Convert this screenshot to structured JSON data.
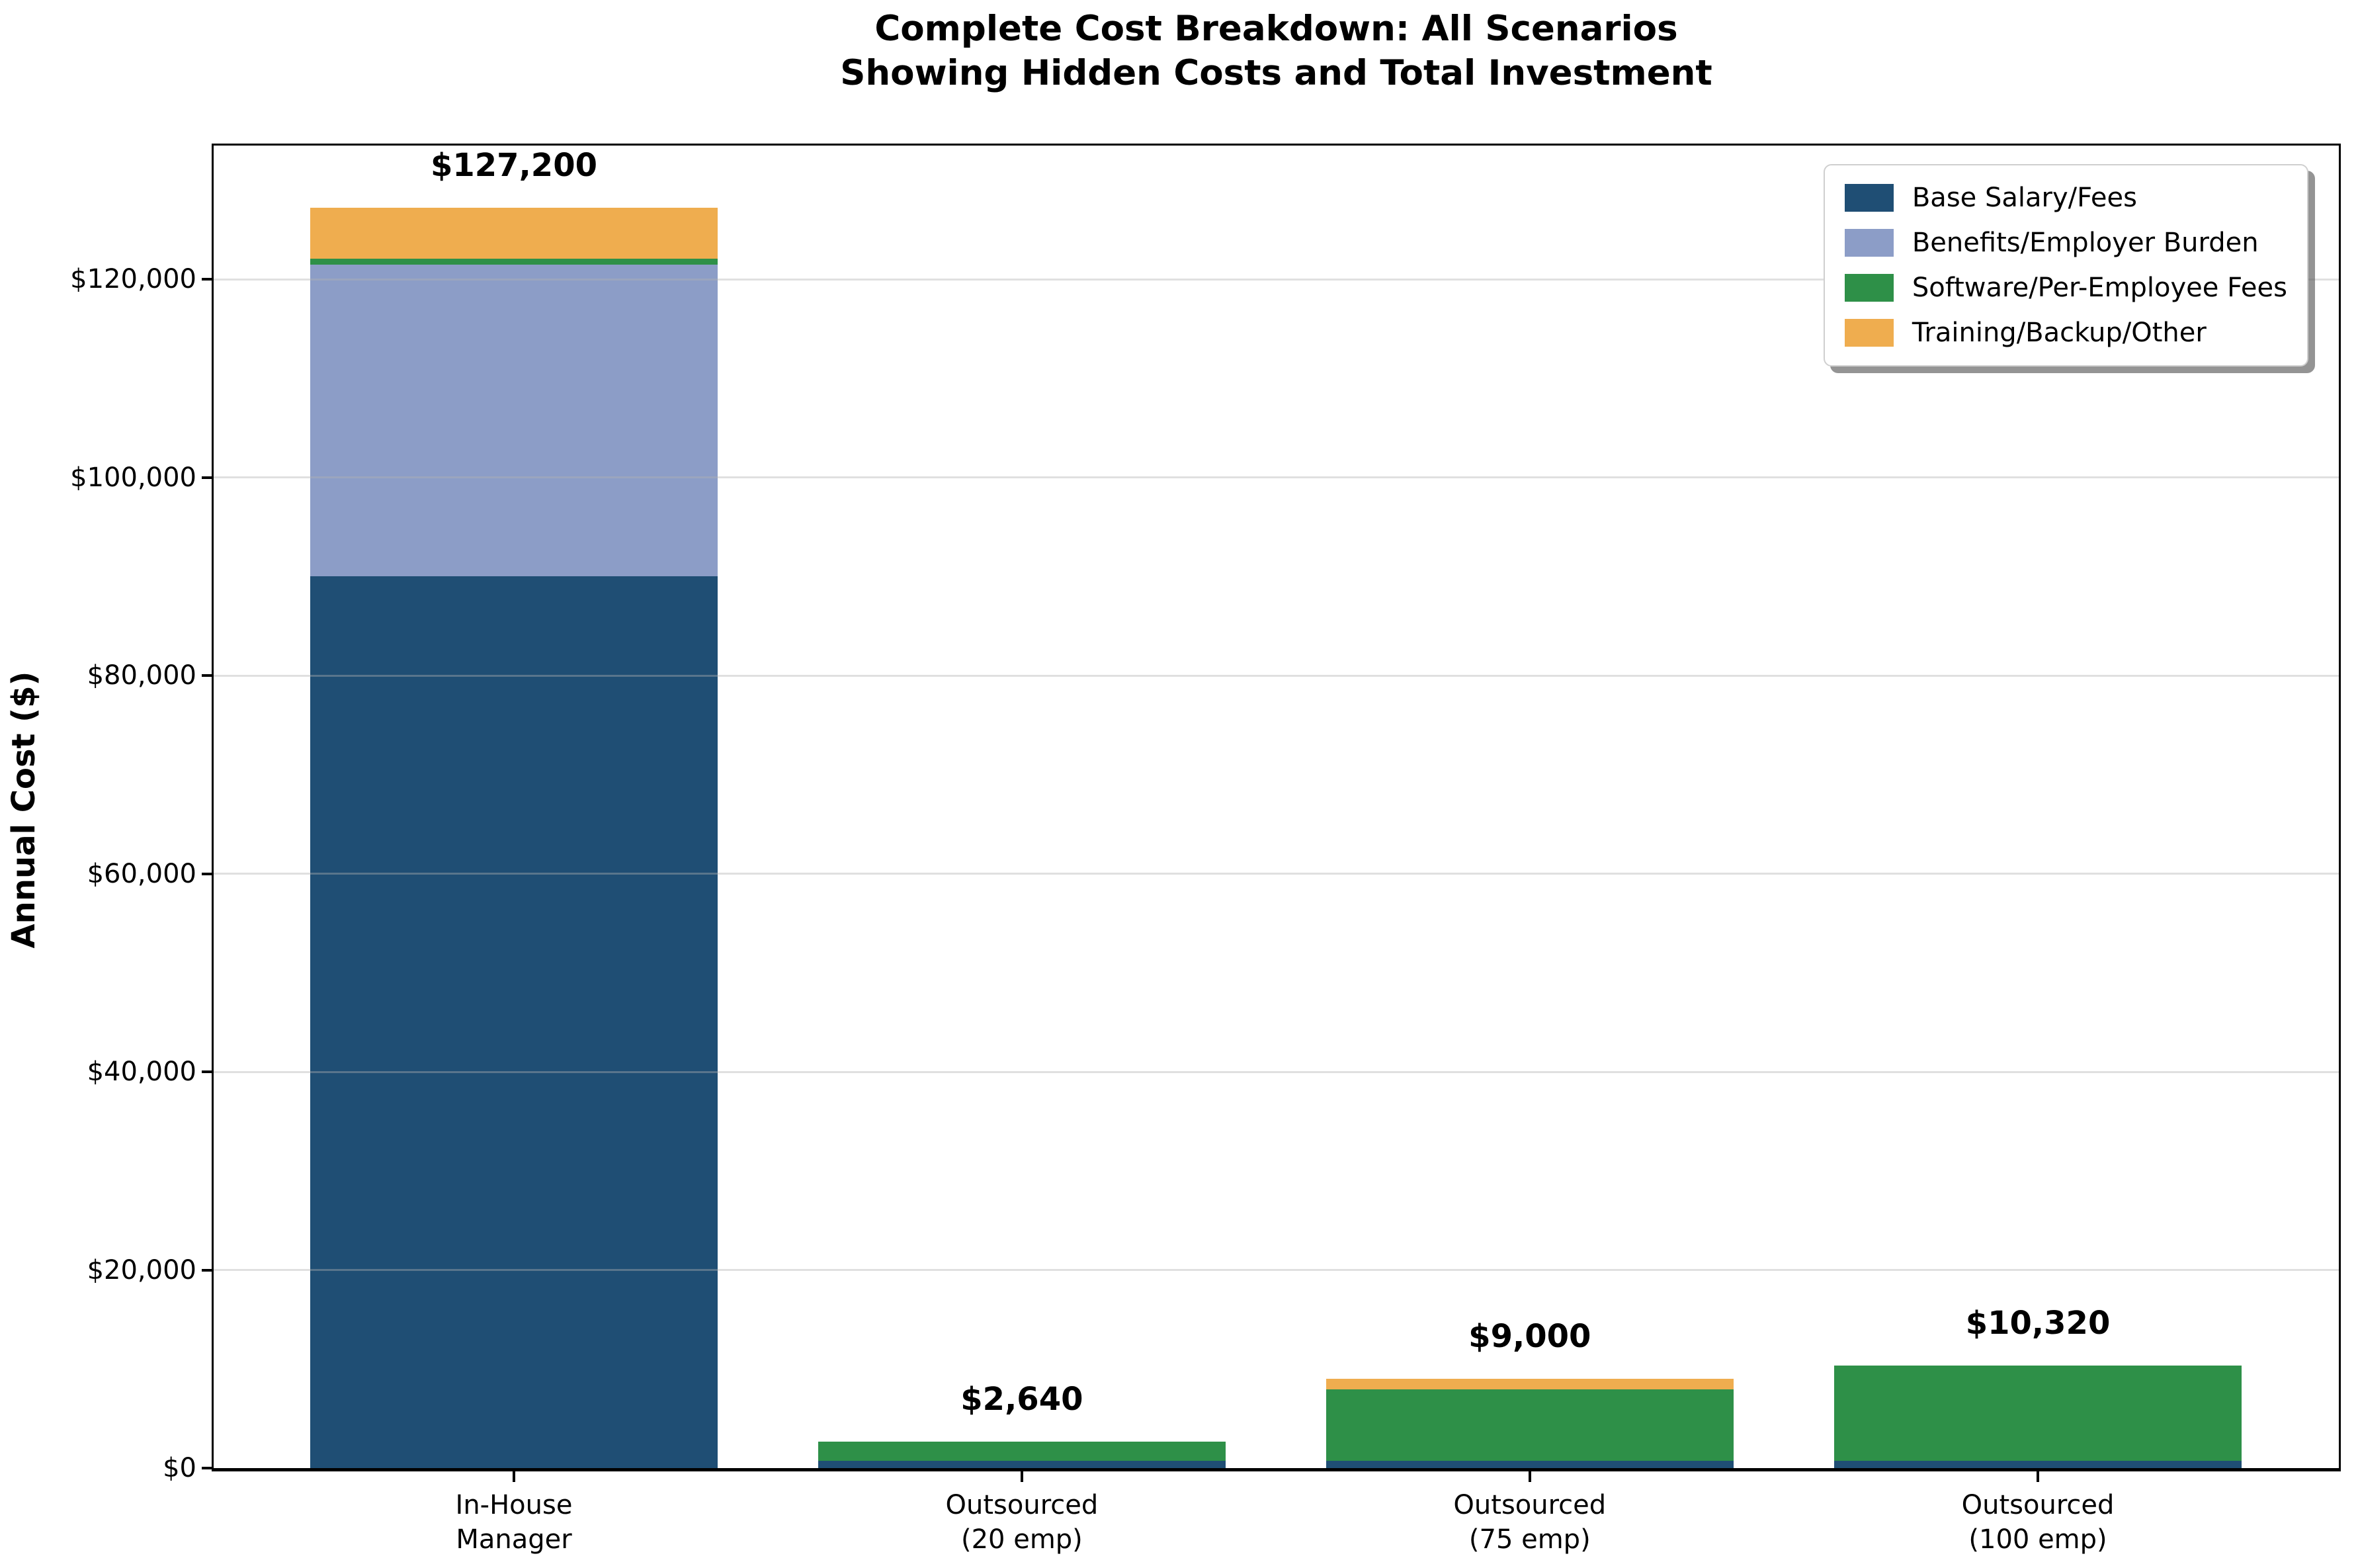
{
  "title": {
    "line1": "Complete Cost Breakdown: All Scenarios",
    "line2": "Showing Hidden Costs and Total Investment"
  },
  "chart_data": {
    "type": "bar",
    "stacked": true,
    "title": "Complete Cost Breakdown: All Scenarios\nShowing Hidden Costs and Total Investment",
    "xlabel": "",
    "ylabel": "Annual Cost ($)",
    "categories": [
      [
        "In-House",
        "Manager"
      ],
      [
        "Outsourced",
        "(20 emp)"
      ],
      [
        "Outsourced",
        "(75 emp)"
      ],
      [
        "Outsourced",
        "(100 emp)"
      ]
    ],
    "series": [
      {
        "name": "Base Salary/Fees",
        "color": "#1F4E74",
        "values": [
          90000,
          720,
          720,
          720
        ]
      },
      {
        "name": "Benefits/Employer Burden",
        "color": "#8C9DC7",
        "values": [
          31500,
          0,
          0,
          0
        ]
      },
      {
        "name": "Software/Per-Employee Fees",
        "color": "#2E9048",
        "values": [
          600,
          1920,
          7200,
          9600
        ]
      },
      {
        "name": "Training/Backup/Other",
        "color": "#EFAD4F",
        "values": [
          5100,
          0,
          1080,
          0
        ]
      }
    ],
    "totals": [
      127200,
      2640,
      9000,
      10320
    ],
    "total_labels": [
      "$127,200",
      "$2,640",
      "$9,000",
      "$10,320"
    ],
    "yticks": [
      {
        "value": 0,
        "label": "$0"
      },
      {
        "value": 20000,
        "label": "$20,000"
      },
      {
        "value": 40000,
        "label": "$40,000"
      },
      {
        "value": 60000,
        "label": "$60,000"
      },
      {
        "value": 80000,
        "label": "$80,000"
      },
      {
        "value": 100000,
        "label": "$100,000"
      },
      {
        "value": 120000,
        "label": "$120,000"
      }
    ],
    "ylim": [
      0,
      133500
    ],
    "grid": "horizontal",
    "legend_position": "upper right"
  }
}
